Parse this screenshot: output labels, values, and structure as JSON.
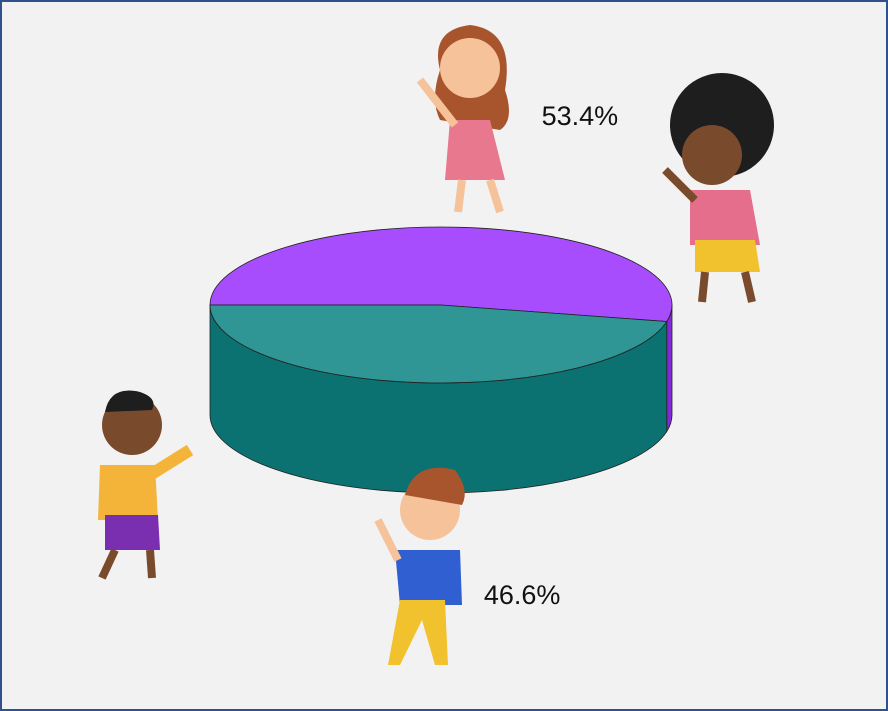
{
  "chart_data": {
    "type": "pie",
    "values": [
      53.4,
      46.6
    ],
    "value_labels": [
      "53.4%",
      "46.6%"
    ],
    "colors": [
      "#9b30ff",
      "#0e8585"
    ]
  }
}
